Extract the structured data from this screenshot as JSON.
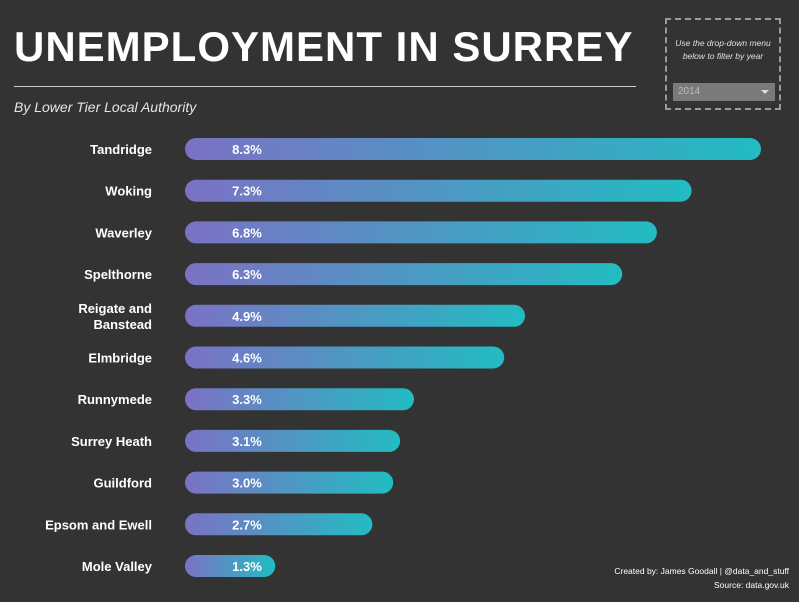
{
  "header": {
    "title": "UNEMPLOYMENT IN SURREY",
    "subtitle": "By Lower Tier Local Authority"
  },
  "filter": {
    "hint": "Use the drop-down menu below to filter by year",
    "selected_year": "2014"
  },
  "footer": {
    "created_by": "Created by: James Goodall | @data_and_stuff",
    "source": "Source: data.gov.uk"
  },
  "colors": {
    "background": "#333333",
    "bar_start": "#7b72c4",
    "bar_end": "#22bcc2"
  },
  "chart_data": {
    "type": "bar",
    "orientation": "horizontal",
    "title": "UNEMPLOYMENT IN SURREY",
    "subtitle": "By Lower Tier Local Authority",
    "categories": [
      "Tandridge",
      "Woking",
      "Waverley",
      "Spelthorne",
      "Reigate and Banstead",
      "Elmbridge",
      "Runnymede",
      "Surrey Heath",
      "Guildford",
      "Epsom and Ewell",
      "Mole Valley"
    ],
    "category_lines": [
      [
        "Tandridge"
      ],
      [
        "Woking"
      ],
      [
        "Waverley"
      ],
      [
        "Spelthorne"
      ],
      [
        "Reigate and",
        "Banstead"
      ],
      [
        "Elmbridge"
      ],
      [
        "Runnymede"
      ],
      [
        "Surrey Heath"
      ],
      [
        "Guildford"
      ],
      [
        "Epsom and Ewell"
      ],
      [
        "Mole Valley"
      ]
    ],
    "values": [
      8.3,
      7.3,
      6.8,
      6.3,
      4.9,
      4.6,
      3.3,
      3.1,
      3.0,
      2.7,
      1.3
    ],
    "value_labels": [
      "8.3%",
      "7.3%",
      "6.8%",
      "6.3%",
      "4.9%",
      "4.6%",
      "3.3%",
      "3.1%",
      "3.0%",
      "2.7%",
      "1.3%"
    ],
    "unit": "%",
    "xlim": [
      0,
      8.3
    ],
    "grid": false,
    "legend": "none"
  }
}
